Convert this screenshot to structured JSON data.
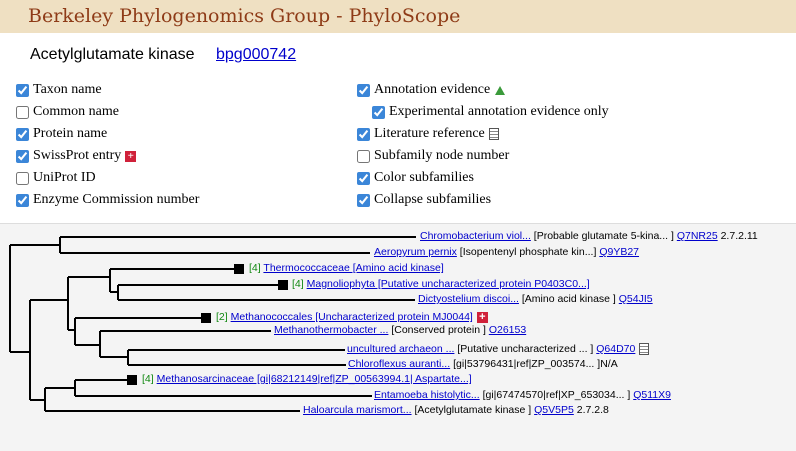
{
  "header": {
    "title": "Berkeley Phylogenomics Group - PhyloScope"
  },
  "protein": {
    "name": "Acetylglutamate kinase",
    "id": "bpg000742"
  },
  "options": {
    "left": [
      {
        "label": "Taxon name",
        "checked": true
      },
      {
        "label": "Common name",
        "checked": false
      },
      {
        "label": "Protein name",
        "checked": true
      },
      {
        "label": "SwissProt entry",
        "checked": true
      },
      {
        "label": "UniProt ID",
        "checked": false
      },
      {
        "label": "Enzyme Commission number",
        "checked": true
      }
    ],
    "right": [
      {
        "label": "Annotation evidence",
        "checked": true
      },
      {
        "label": "Experimental annotation evidence only",
        "checked": true
      },
      {
        "label": "Literature reference",
        "checked": true
      },
      {
        "label": "Subfamily node number",
        "checked": false
      },
      {
        "label": "Color subfamilies",
        "checked": true
      },
      {
        "label": "Collapse subfamilies",
        "checked": true
      }
    ]
  },
  "tree": {
    "rows": [
      {
        "name": "Chromobacterium viol...",
        "desc": "[Probable glutamate 5-kina... ]",
        "accession": "Q7NR25",
        "ec": "2.7.2.11"
      },
      {
        "name": "Aeropyrum pernix",
        "desc": "[Isopentenyl phosphate kin...]",
        "accession": "Q9YB27"
      },
      {
        "count": "[4]",
        "name": "Thermococcaceae [Amino acid kinase]"
      },
      {
        "count": "[4]",
        "name": "Magnoliophyta [Putative uncharacterized protein P0403C0...]"
      },
      {
        "name": "Dictyostelium discoi...",
        "desc": "[Amino acid kinase ]",
        "accession": "Q54JI5"
      },
      {
        "count": "[2]",
        "name": "Methanococcales [Uncharacterized protein MJ0044]"
      },
      {
        "name": "Methanothermobacter ...",
        "desc": "[Conserved protein ]",
        "accession": "O26153"
      },
      {
        "name": "uncultured archaeon ...",
        "desc": "[Putative uncharacterized ... ]",
        "accession": "Q64D70"
      },
      {
        "name": "Chloroflexus auranti...",
        "desc": "[gi|53796431|ref|ZP_003574... ]",
        "unlinked": "N/A"
      },
      {
        "count": "[4]",
        "name": "Methanosarcinaceae [gi|68212149|ref|ZP_00563994.1| Aspartate...]"
      },
      {
        "name": "Entamoeba histolytic...",
        "desc": "[gi|67474570|ref|XP_653034... ]",
        "accession": "Q511X9"
      },
      {
        "name": "Haloarcula marismort...",
        "desc": "[Acetylglutamate kinase ]",
        "accession": "Q5V5P5",
        "ec": "2.7.2.8"
      }
    ]
  }
}
